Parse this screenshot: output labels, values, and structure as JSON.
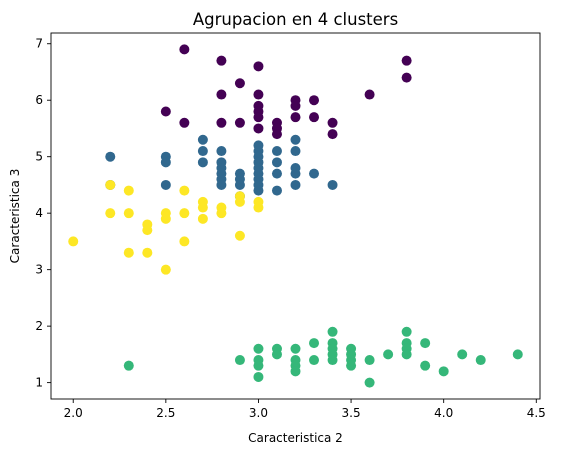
{
  "chart_data": {
    "type": "scatter",
    "title": "Agrupacion en 4 clusters",
    "xlabel": "Caracteristica 2",
    "ylabel": "Caracteristica 3",
    "xlim": [
      1.88,
      4.52
    ],
    "ylim": [
      0.71,
      7.19
    ],
    "xticks": [
      "2.0",
      "2.5",
      "3.0",
      "3.5",
      "4.0",
      "4.5"
    ],
    "yticks": [
      "1",
      "2",
      "3",
      "4",
      "5",
      "6",
      "7"
    ],
    "grid": false,
    "legend": "none",
    "series": [
      {
        "color": "#440154",
        "points": [
          [
            2.6,
            6.9
          ],
          [
            2.8,
            6.7
          ],
          [
            3.0,
            6.6
          ],
          [
            3.8,
            6.7
          ],
          [
            3.8,
            6.4
          ],
          [
            2.8,
            6.1
          ],
          [
            2.9,
            6.3
          ],
          [
            3.0,
            6.1
          ],
          [
            3.2,
            6.0
          ],
          [
            3.3,
            6.0
          ],
          [
            3.6,
            6.1
          ],
          [
            3.2,
            5.9
          ],
          [
            2.5,
            5.8
          ],
          [
            3.0,
            5.9
          ],
          [
            3.0,
            5.8
          ],
          [
            3.0,
            5.7
          ],
          [
            3.1,
            5.6
          ],
          [
            3.2,
            5.7
          ],
          [
            3.3,
            5.7
          ],
          [
            2.6,
            5.6
          ],
          [
            2.8,
            5.6
          ],
          [
            2.9,
            5.6
          ],
          [
            3.1,
            5.5
          ],
          [
            3.1,
            5.4
          ],
          [
            3.0,
            5.5
          ],
          [
            3.4,
            5.6
          ],
          [
            3.4,
            5.4
          ]
        ]
      },
      {
        "color": "#31688e",
        "points": [
          [
            2.2,
            5.0
          ],
          [
            2.2,
            4.5
          ],
          [
            2.5,
            5.0
          ],
          [
            2.5,
            4.9
          ],
          [
            2.5,
            4.5
          ],
          [
            2.7,
            5.3
          ],
          [
            2.7,
            5.1
          ],
          [
            2.7,
            4.9
          ],
          [
            2.8,
            5.1
          ],
          [
            2.8,
            4.9
          ],
          [
            2.8,
            4.8
          ],
          [
            2.8,
            4.7
          ],
          [
            2.8,
            4.6
          ],
          [
            2.8,
            4.5
          ],
          [
            2.9,
            4.7
          ],
          [
            2.9,
            4.6
          ],
          [
            2.9,
            4.5
          ],
          [
            2.9,
            4.3
          ],
          [
            3.0,
            5.2
          ],
          [
            3.0,
            5.1
          ],
          [
            3.0,
            5.0
          ],
          [
            3.0,
            4.9
          ],
          [
            3.0,
            4.8
          ],
          [
            3.0,
            4.7
          ],
          [
            3.0,
            4.6
          ],
          [
            3.0,
            4.5
          ],
          [
            3.0,
            4.4
          ],
          [
            3.1,
            5.1
          ],
          [
            3.1,
            4.9
          ],
          [
            3.1,
            4.7
          ],
          [
            3.1,
            4.4
          ],
          [
            3.2,
            5.3
          ],
          [
            3.2,
            5.1
          ],
          [
            3.2,
            4.8
          ],
          [
            3.2,
            4.7
          ],
          [
            3.2,
            4.5
          ],
          [
            3.3,
            4.7
          ],
          [
            3.4,
            4.5
          ]
        ]
      },
      {
        "color": "#35b779",
        "points": [
          [
            2.3,
            1.3
          ],
          [
            2.9,
            1.4
          ],
          [
            3.0,
            1.6
          ],
          [
            3.0,
            1.4
          ],
          [
            3.0,
            1.3
          ],
          [
            3.0,
            1.1
          ],
          [
            3.1,
            1.6
          ],
          [
            3.1,
            1.5
          ],
          [
            3.2,
            1.6
          ],
          [
            3.2,
            1.4
          ],
          [
            3.2,
            1.3
          ],
          [
            3.2,
            1.2
          ],
          [
            3.3,
            1.7
          ],
          [
            3.3,
            1.4
          ],
          [
            3.4,
            1.9
          ],
          [
            3.4,
            1.7
          ],
          [
            3.4,
            1.6
          ],
          [
            3.4,
            1.5
          ],
          [
            3.4,
            1.4
          ],
          [
            3.5,
            1.6
          ],
          [
            3.5,
            1.5
          ],
          [
            3.5,
            1.4
          ],
          [
            3.5,
            1.3
          ],
          [
            3.6,
            1.4
          ],
          [
            3.6,
            1.0
          ],
          [
            3.7,
            1.5
          ],
          [
            3.8,
            1.9
          ],
          [
            3.8,
            1.7
          ],
          [
            3.8,
            1.6
          ],
          [
            3.8,
            1.5
          ],
          [
            3.9,
            1.7
          ],
          [
            3.9,
            1.3
          ],
          [
            4.0,
            1.2
          ],
          [
            4.1,
            1.5
          ],
          [
            4.2,
            1.4
          ],
          [
            4.4,
            1.5
          ]
        ]
      },
      {
        "color": "#fde725",
        "points": [
          [
            2.0,
            3.5
          ],
          [
            2.2,
            4.5
          ],
          [
            2.2,
            4.0
          ],
          [
            2.3,
            4.4
          ],
          [
            2.3,
            4.0
          ],
          [
            2.3,
            3.3
          ],
          [
            2.4,
            3.8
          ],
          [
            2.4,
            3.7
          ],
          [
            2.4,
            3.3
          ],
          [
            2.5,
            4.0
          ],
          [
            2.5,
            3.9
          ],
          [
            2.5,
            3.0
          ],
          [
            2.6,
            4.4
          ],
          [
            2.6,
            4.0
          ],
          [
            2.6,
            3.5
          ],
          [
            2.7,
            4.2
          ],
          [
            2.7,
            4.1
          ],
          [
            2.7,
            3.9
          ],
          [
            2.8,
            4.1
          ],
          [
            2.8,
            4.0
          ],
          [
            2.9,
            4.3
          ],
          [
            2.9,
            4.2
          ],
          [
            2.9,
            3.6
          ],
          [
            3.0,
            4.2
          ],
          [
            3.0,
            4.1
          ]
        ]
      }
    ]
  }
}
